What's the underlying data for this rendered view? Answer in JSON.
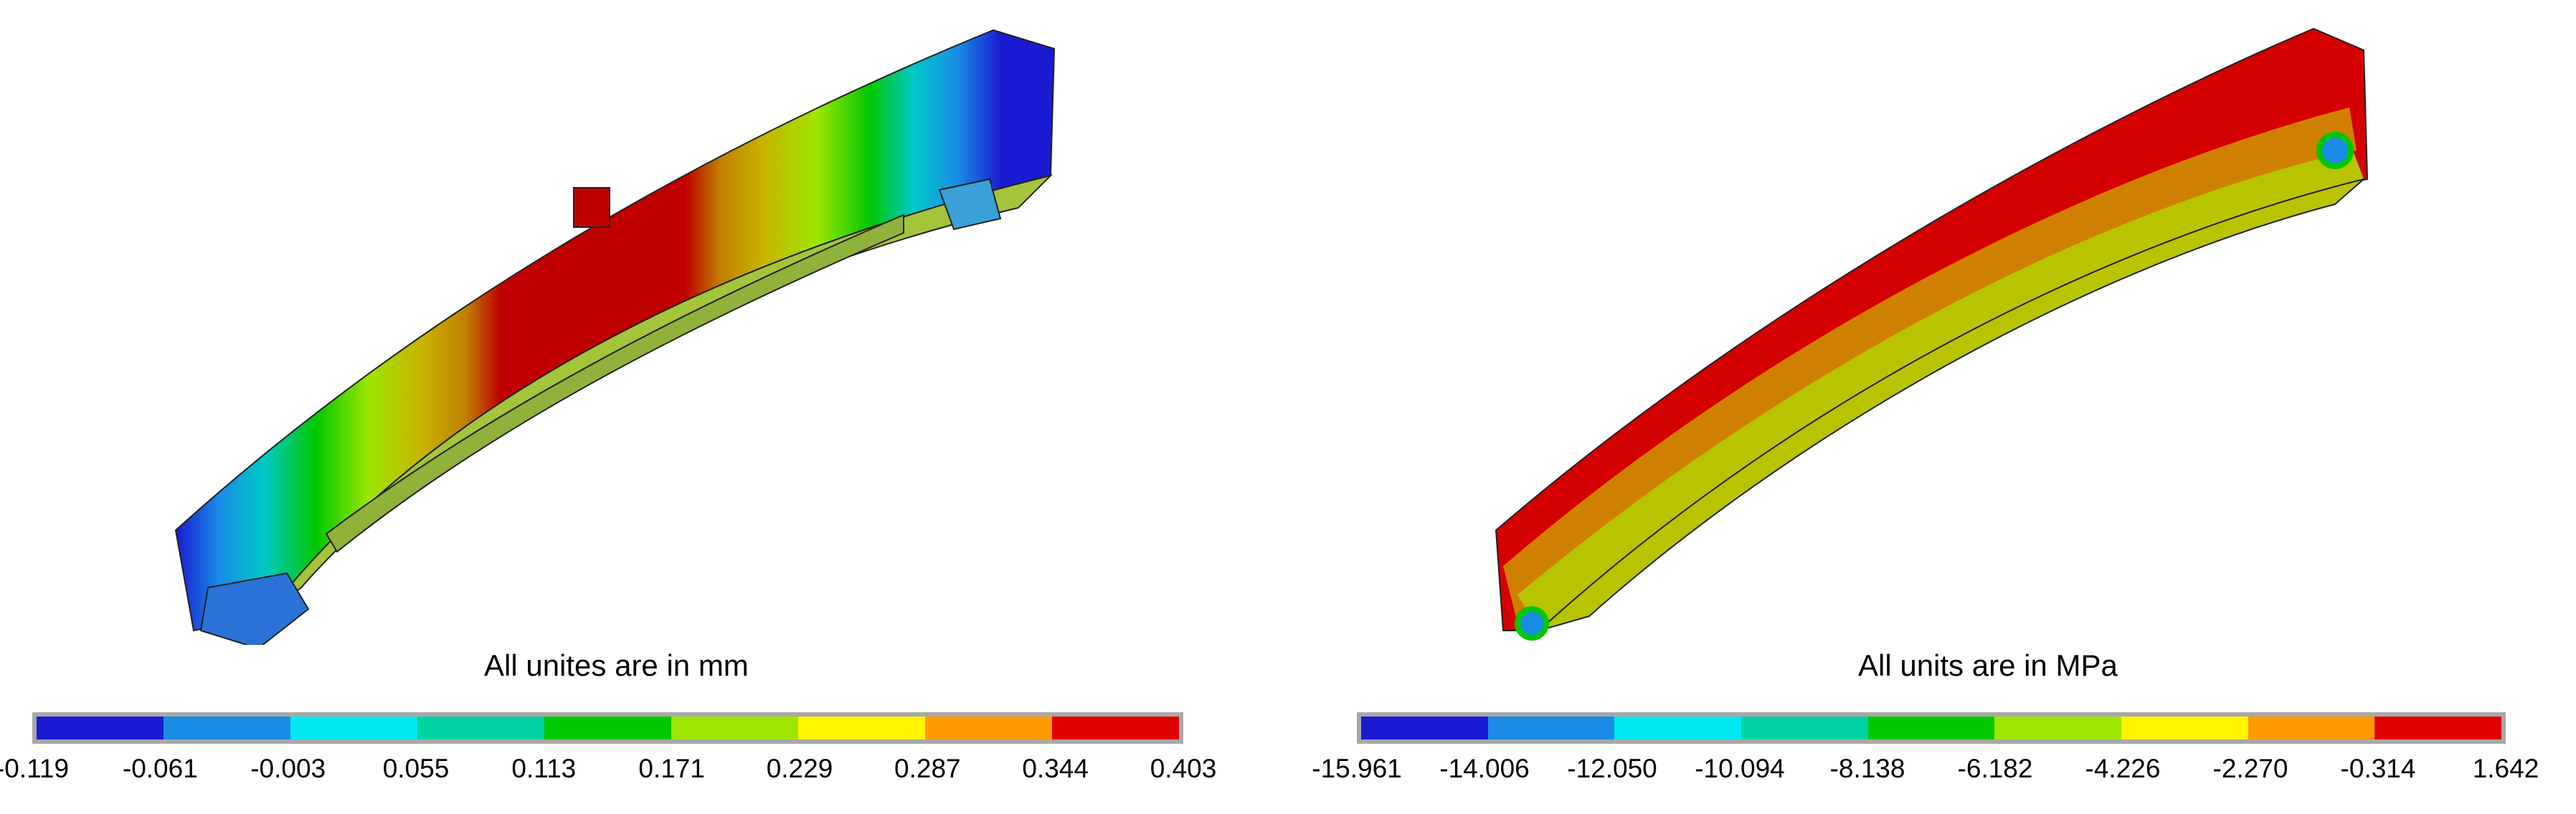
{
  "left": {
    "caption": "All unites are in mm",
    "colors": [
      "#1a1ad2",
      "#1a8ce6",
      "#00e8f0",
      "#00d3a4",
      "#00c800",
      "#9ee600",
      "#fff500",
      "#ff9a00",
      "#e00000"
    ],
    "ticks": [
      "-0.119",
      "-0.061",
      "-0.003",
      "0.055",
      "0.113",
      "0.171",
      "0.229",
      "0.287",
      "0.344",
      "0.403"
    ]
  },
  "right": {
    "caption": "All units are in MPa",
    "colors": [
      "#1a1ad2",
      "#1a8ce6",
      "#00e8f0",
      "#00d3a4",
      "#00c800",
      "#9ee600",
      "#fff500",
      "#ff9a00",
      "#e00000"
    ],
    "ticks": [
      "-15.961",
      "-14.006",
      "-12.050",
      "-10.094",
      "-8.138",
      "-6.182",
      "-4.226",
      "-2.270",
      "-0.314",
      "1.642"
    ]
  }
}
